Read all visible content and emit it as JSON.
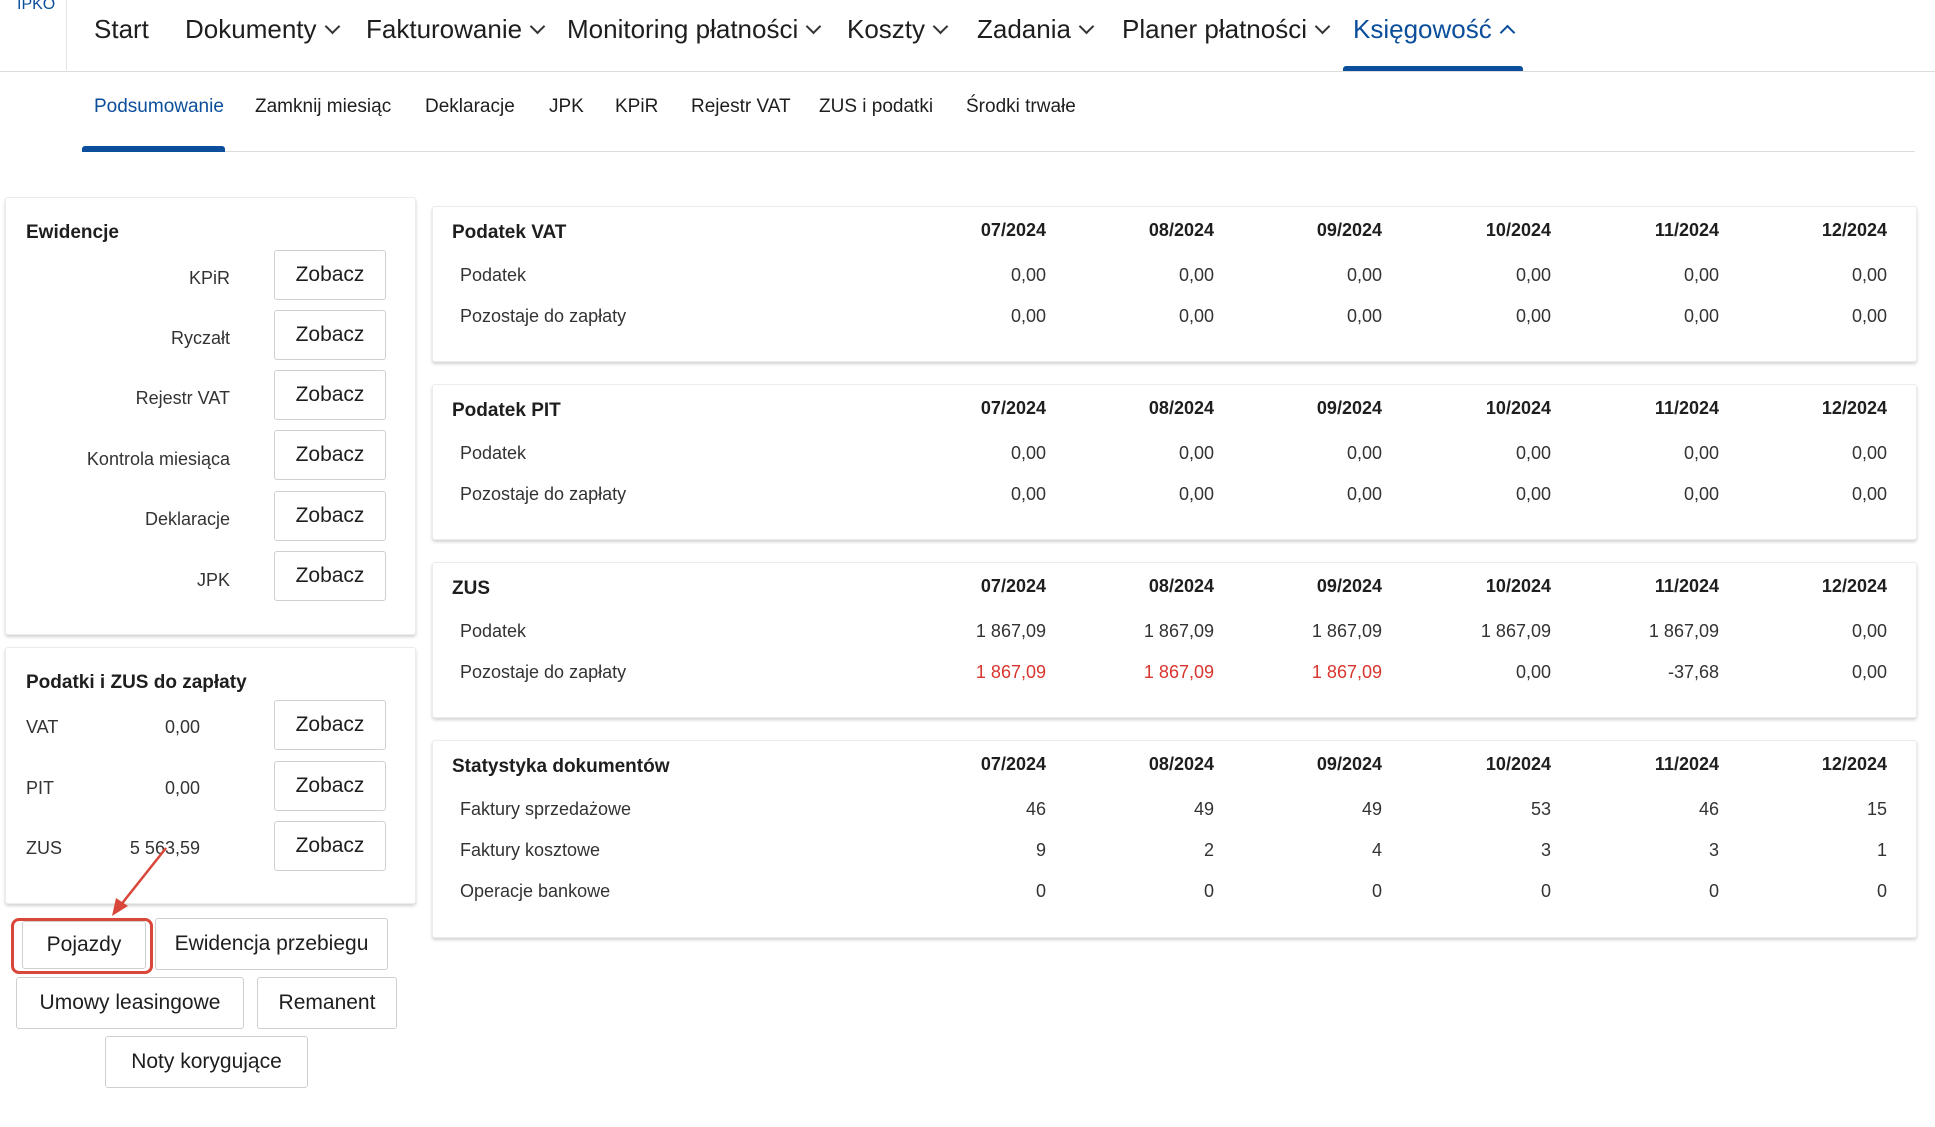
{
  "app": {
    "logo_text": "IPKO"
  },
  "topnav": {
    "items": [
      {
        "label": "Start",
        "has_chevron": false
      },
      {
        "label": "Dokumenty",
        "has_chevron": true
      },
      {
        "label": "Fakturowanie",
        "has_chevron": true
      },
      {
        "label": "Monitoring płatności",
        "has_chevron": true
      },
      {
        "label": "Koszty",
        "has_chevron": true
      },
      {
        "label": "Zadania",
        "has_chevron": true
      },
      {
        "label": "Planer płatności",
        "has_chevron": true
      },
      {
        "label": "Księgowość",
        "has_chevron": true,
        "active": true
      }
    ]
  },
  "subnav": {
    "items": [
      "Podsumowanie",
      "Zamknij miesiąc",
      "Deklaracje",
      "JPK",
      "KPiR",
      "Rejestr VAT",
      "ZUS i podatki",
      "Środki trwałe"
    ],
    "active_index": 0
  },
  "ewidencje": {
    "title": "Ewidencje",
    "button_label": "Zobacz",
    "rows": [
      "KPiR",
      "Ryczałt",
      "Rejestr VAT",
      "Kontrola miesiąca",
      "Deklaracje",
      "JPK"
    ]
  },
  "podatki": {
    "title": "Podatki i ZUS do zapłaty",
    "button_label": "Zobacz",
    "rows": [
      {
        "label": "VAT",
        "value": "0,00"
      },
      {
        "label": "PIT",
        "value": "0,00"
      },
      {
        "label": "ZUS",
        "value": "5 563,59"
      }
    ]
  },
  "extra_buttons": {
    "pojazdy": "Pojazdy",
    "ewidencja_przebiegu": "Ewidencja przebiegu",
    "umowy_leasingowe": "Umowy leasingowe",
    "remanent": "Remanent",
    "noty_korygujace": "Noty korygujące"
  },
  "months": [
    "07/2024",
    "08/2024",
    "09/2024",
    "10/2024",
    "11/2024",
    "12/2024"
  ],
  "tables": [
    {
      "title": "Podatek VAT",
      "rows": [
        {
          "label": "Podatek",
          "values": [
            "0,00",
            "0,00",
            "0,00",
            "0,00",
            "0,00",
            "0,00"
          ]
        },
        {
          "label": "Pozostaje do zapłaty",
          "values": [
            "0,00",
            "0,00",
            "0,00",
            "0,00",
            "0,00",
            "0,00"
          ]
        }
      ]
    },
    {
      "title": "Podatek PIT",
      "rows": [
        {
          "label": "Podatek",
          "values": [
            "0,00",
            "0,00",
            "0,00",
            "0,00",
            "0,00",
            "0,00"
          ]
        },
        {
          "label": "Pozostaje do zapłaty",
          "values": [
            "0,00",
            "0,00",
            "0,00",
            "0,00",
            "0,00",
            "0,00"
          ]
        }
      ]
    },
    {
      "title": "ZUS",
      "rows": [
        {
          "label": "Podatek",
          "values": [
            "1 867,09",
            "1 867,09",
            "1 867,09",
            "1 867,09",
            "1 867,09",
            "0,00"
          ]
        },
        {
          "label": "Pozostaje do zapłaty",
          "values": [
            "1 867,09",
            "1 867,09",
            "1 867,09",
            "0,00",
            "-37,68",
            "0,00"
          ],
          "red_flags": [
            true,
            true,
            true,
            false,
            false,
            false
          ]
        }
      ]
    },
    {
      "title": "Statystyka dokumentów",
      "rows": [
        {
          "label": "Faktury sprzedażowe",
          "values": [
            "46",
            "49",
            "49",
            "53",
            "46",
            "15"
          ]
        },
        {
          "label": "Faktury kosztowe",
          "values": [
            "9",
            "2",
            "4",
            "3",
            "3",
            "1"
          ]
        },
        {
          "label": "Operacje bankowe",
          "values": [
            "0",
            "0",
            "0",
            "0",
            "0",
            "0"
          ]
        }
      ]
    }
  ],
  "colors": {
    "accent": "#0b4e9b",
    "alert": "#d9352e",
    "highlight": "#d9473a"
  }
}
